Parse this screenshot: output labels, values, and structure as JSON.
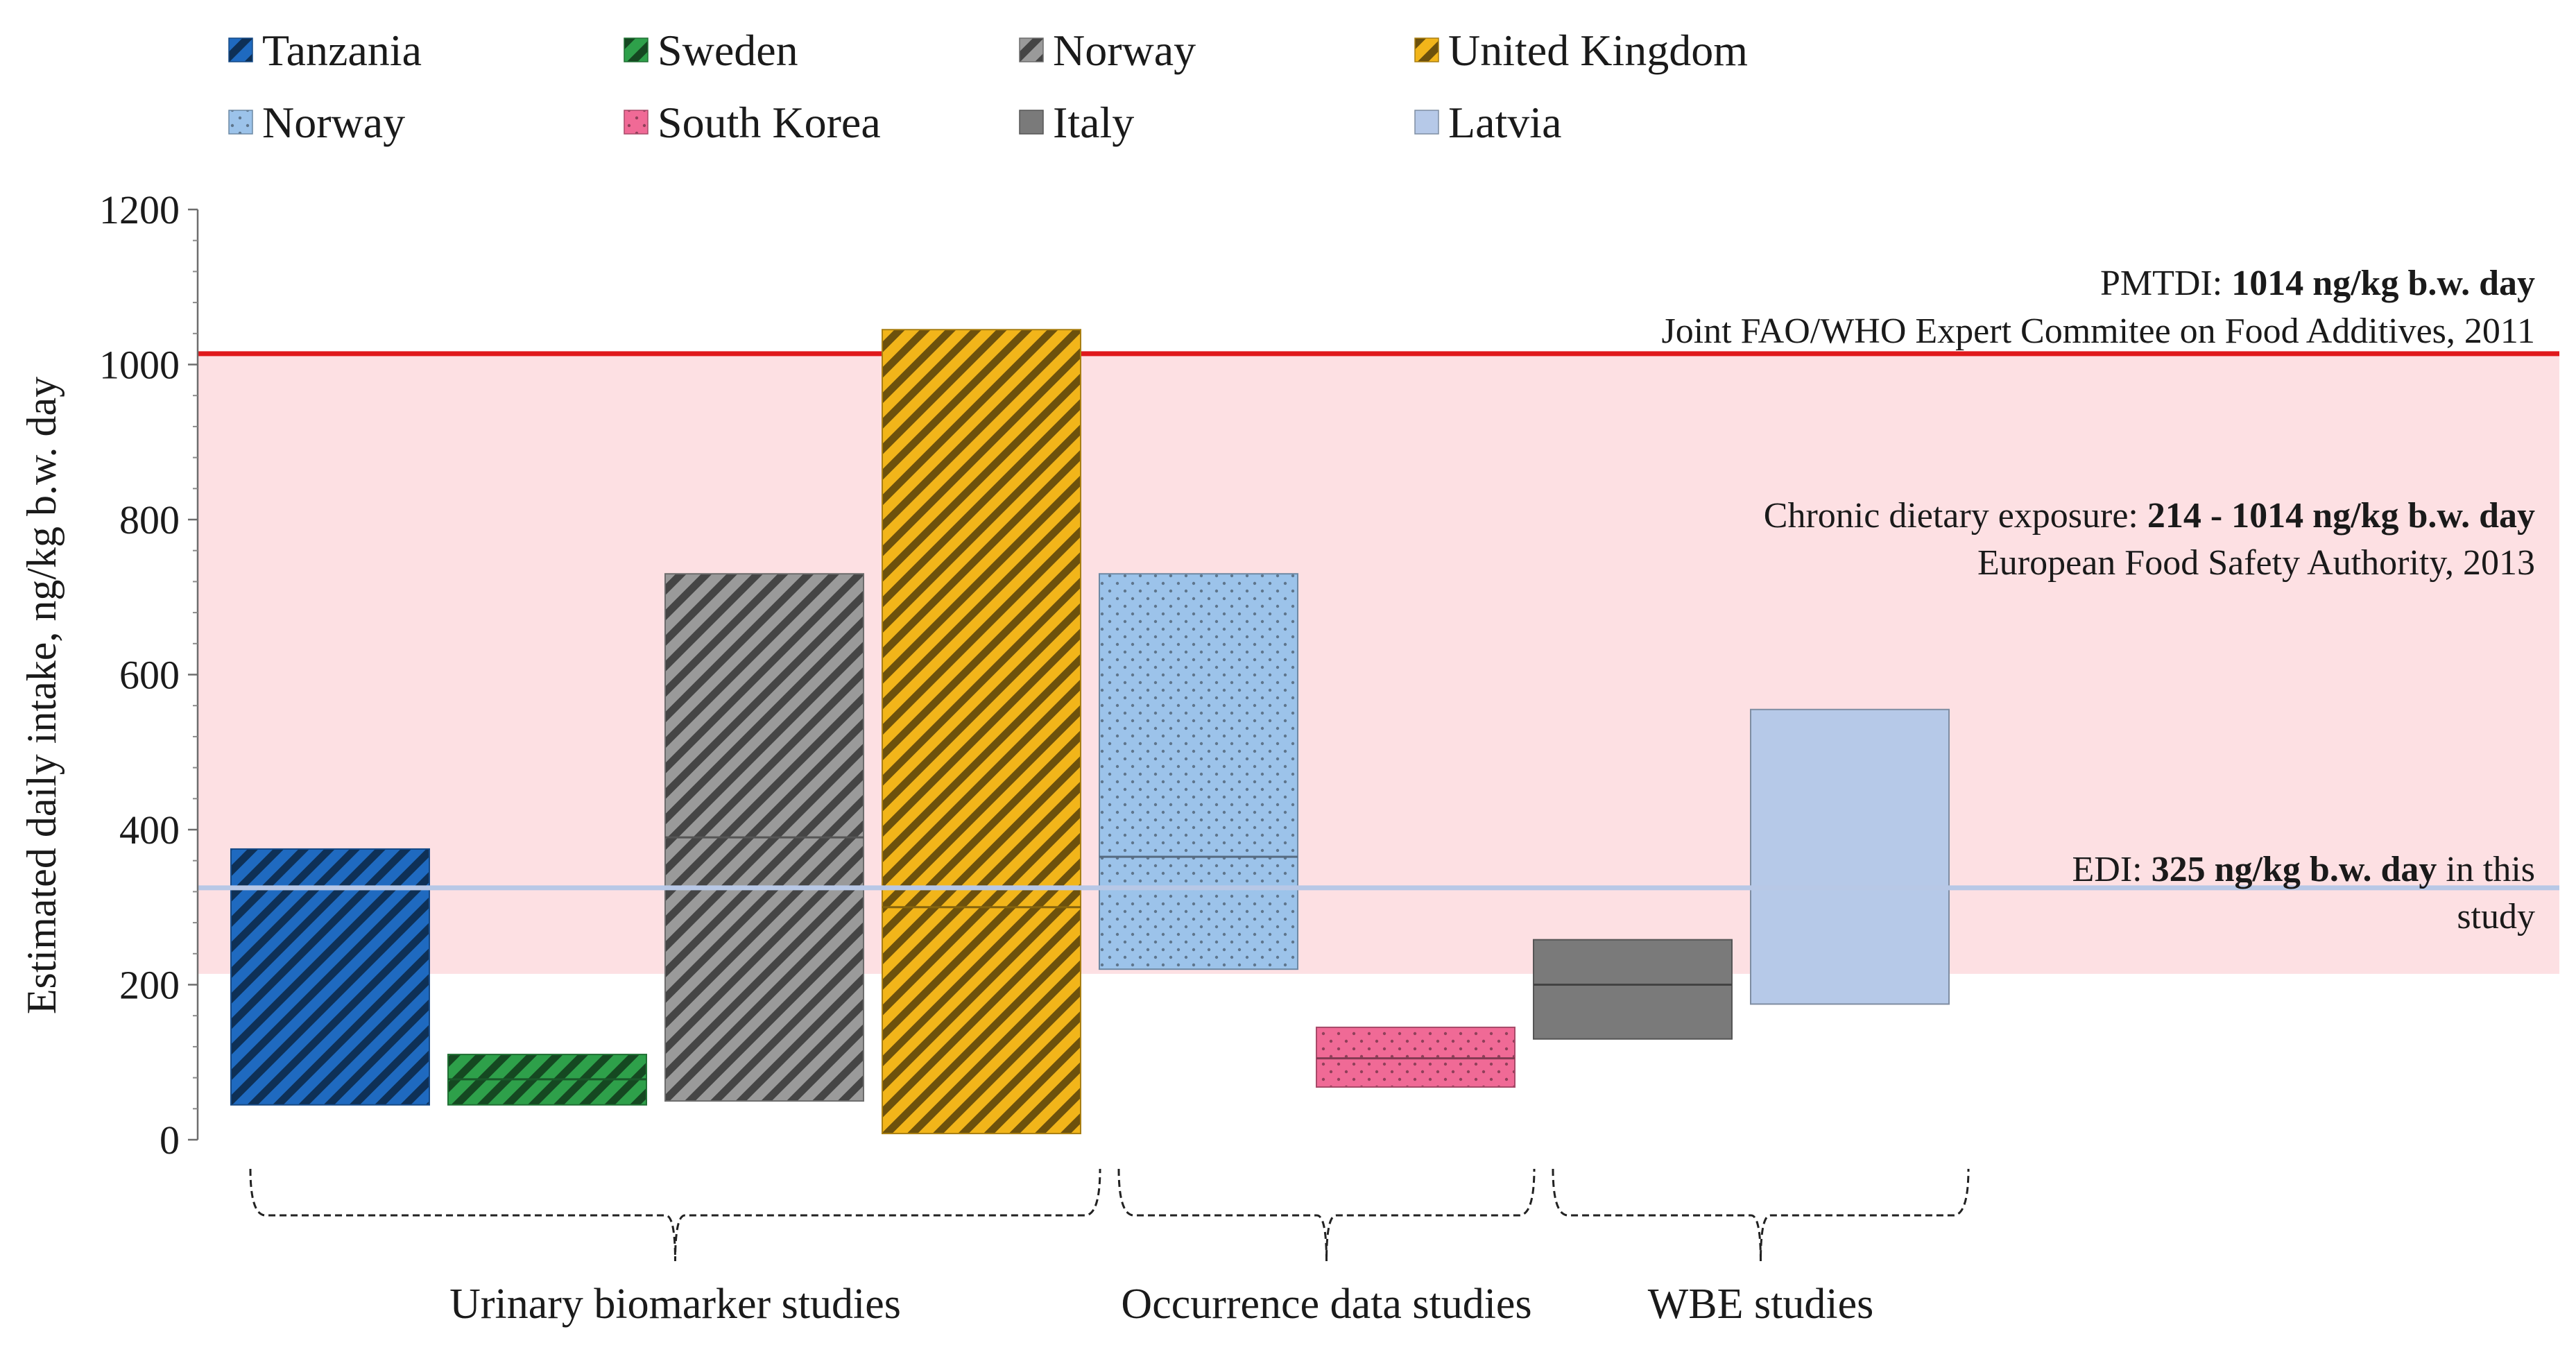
{
  "chart_data": {
    "type": "bar",
    "subtype": "floating-range",
    "ylabel": "Estimated daily intake, ng/kg b.w. day",
    "ylim": [
      0,
      1200
    ],
    "yticks": [
      0,
      200,
      400,
      600,
      800,
      1000,
      1200
    ],
    "ytick_labels": [
      "0",
      "200",
      "400",
      "600",
      "800",
      "1000",
      "1200"
    ],
    "grid": false,
    "legend_position": "top",
    "legend": [
      {
        "label": "Tanzania",
        "color": "#1f6ac0",
        "pattern": "diag-stripe"
      },
      {
        "label": "Sweden",
        "color": "#2ea04a",
        "pattern": "diag-stripe"
      },
      {
        "label": "Norway",
        "color": "#9a9a9a",
        "pattern": "diag-stripe"
      },
      {
        "label": "United Kingdom",
        "color": "#f2b51a",
        "pattern": "diag-stripe"
      },
      {
        "label": "Norway",
        "color": "#9cc3ea",
        "pattern": "dots"
      },
      {
        "label": "South Korea",
        "color": "#f06a96",
        "pattern": "dots"
      },
      {
        "label": "Italy",
        "color": "#7a7a7a",
        "pattern": "solid"
      },
      {
        "label": "Latvia",
        "color": "#b6c9e8",
        "pattern": "solid"
      }
    ],
    "series": [
      {
        "name": "Tanzania",
        "group": "Urinary biomarker studies",
        "low": 45,
        "high": 375,
        "median": null,
        "color": "#1f6ac0",
        "pattern": "diag-stripe"
      },
      {
        "name": "Sweden",
        "group": "Urinary biomarker studies",
        "low": 45,
        "high": 110,
        "median": 78,
        "color": "#2ea04a",
        "pattern": "diag-stripe"
      },
      {
        "name": "Norway",
        "group": "Urinary biomarker studies",
        "low": 50,
        "high": 730,
        "median": 390,
        "color": "#9a9a9a",
        "pattern": "diag-stripe"
      },
      {
        "name": "United Kingdom",
        "group": "Urinary biomarker studies",
        "low": 8,
        "high": 1045,
        "median": 300,
        "color": "#f2b51a",
        "pattern": "diag-stripe"
      },
      {
        "name": "Norway",
        "group": "Occurrence data studies",
        "low": 220,
        "high": 730,
        "median": 365,
        "color": "#9cc3ea",
        "pattern": "dots"
      },
      {
        "name": "South Korea",
        "group": "Occurrence data studies",
        "low": 68,
        "high": 145,
        "median": 105,
        "color": "#f06a96",
        "pattern": "dots"
      },
      {
        "name": "Italy",
        "group": "WBE studies",
        "low": 130,
        "high": 258,
        "median": 200,
        "color": "#7a7a7a",
        "pattern": "solid"
      },
      {
        "name": "Latvia",
        "group": "WBE studies",
        "low": 175,
        "high": 555,
        "median": null,
        "color": "#b6c9e8",
        "pattern": "solid"
      }
    ],
    "reference_lines": [
      {
        "value": 1014,
        "color": "#e0191c",
        "label_prefix": "PMTDI: ",
        "label_bold": "1014 ng/kg b.w. day",
        "label_suffix": "",
        "source": "Joint FAO/WHO Expert Commitee on Food Additives, 2011"
      },
      {
        "value": 325,
        "color": "#b8c8e6",
        "label_prefix": "EDI: ",
        "label_bold": "325 ng/kg b.w. day",
        "label_suffix": " in this",
        "label_line2": "study"
      }
    ],
    "shaded_band": {
      "low": 214,
      "high": 1014,
      "color": "#fde0e3",
      "label_prefix": "Chronic dietary exposure: ",
      "label_bold": "214 - 1014 ng/kg b.w. day",
      "source": "European Food Safety Authority, 2013"
    },
    "groups": [
      {
        "label": "Urinary biomarker studies",
        "bars": [
          0,
          1,
          2,
          3
        ]
      },
      {
        "label": "Occurrence data studies",
        "bars": [
          4,
          5
        ]
      },
      {
        "label": "WBE studies",
        "bars": [
          6,
          7
        ]
      }
    ]
  }
}
